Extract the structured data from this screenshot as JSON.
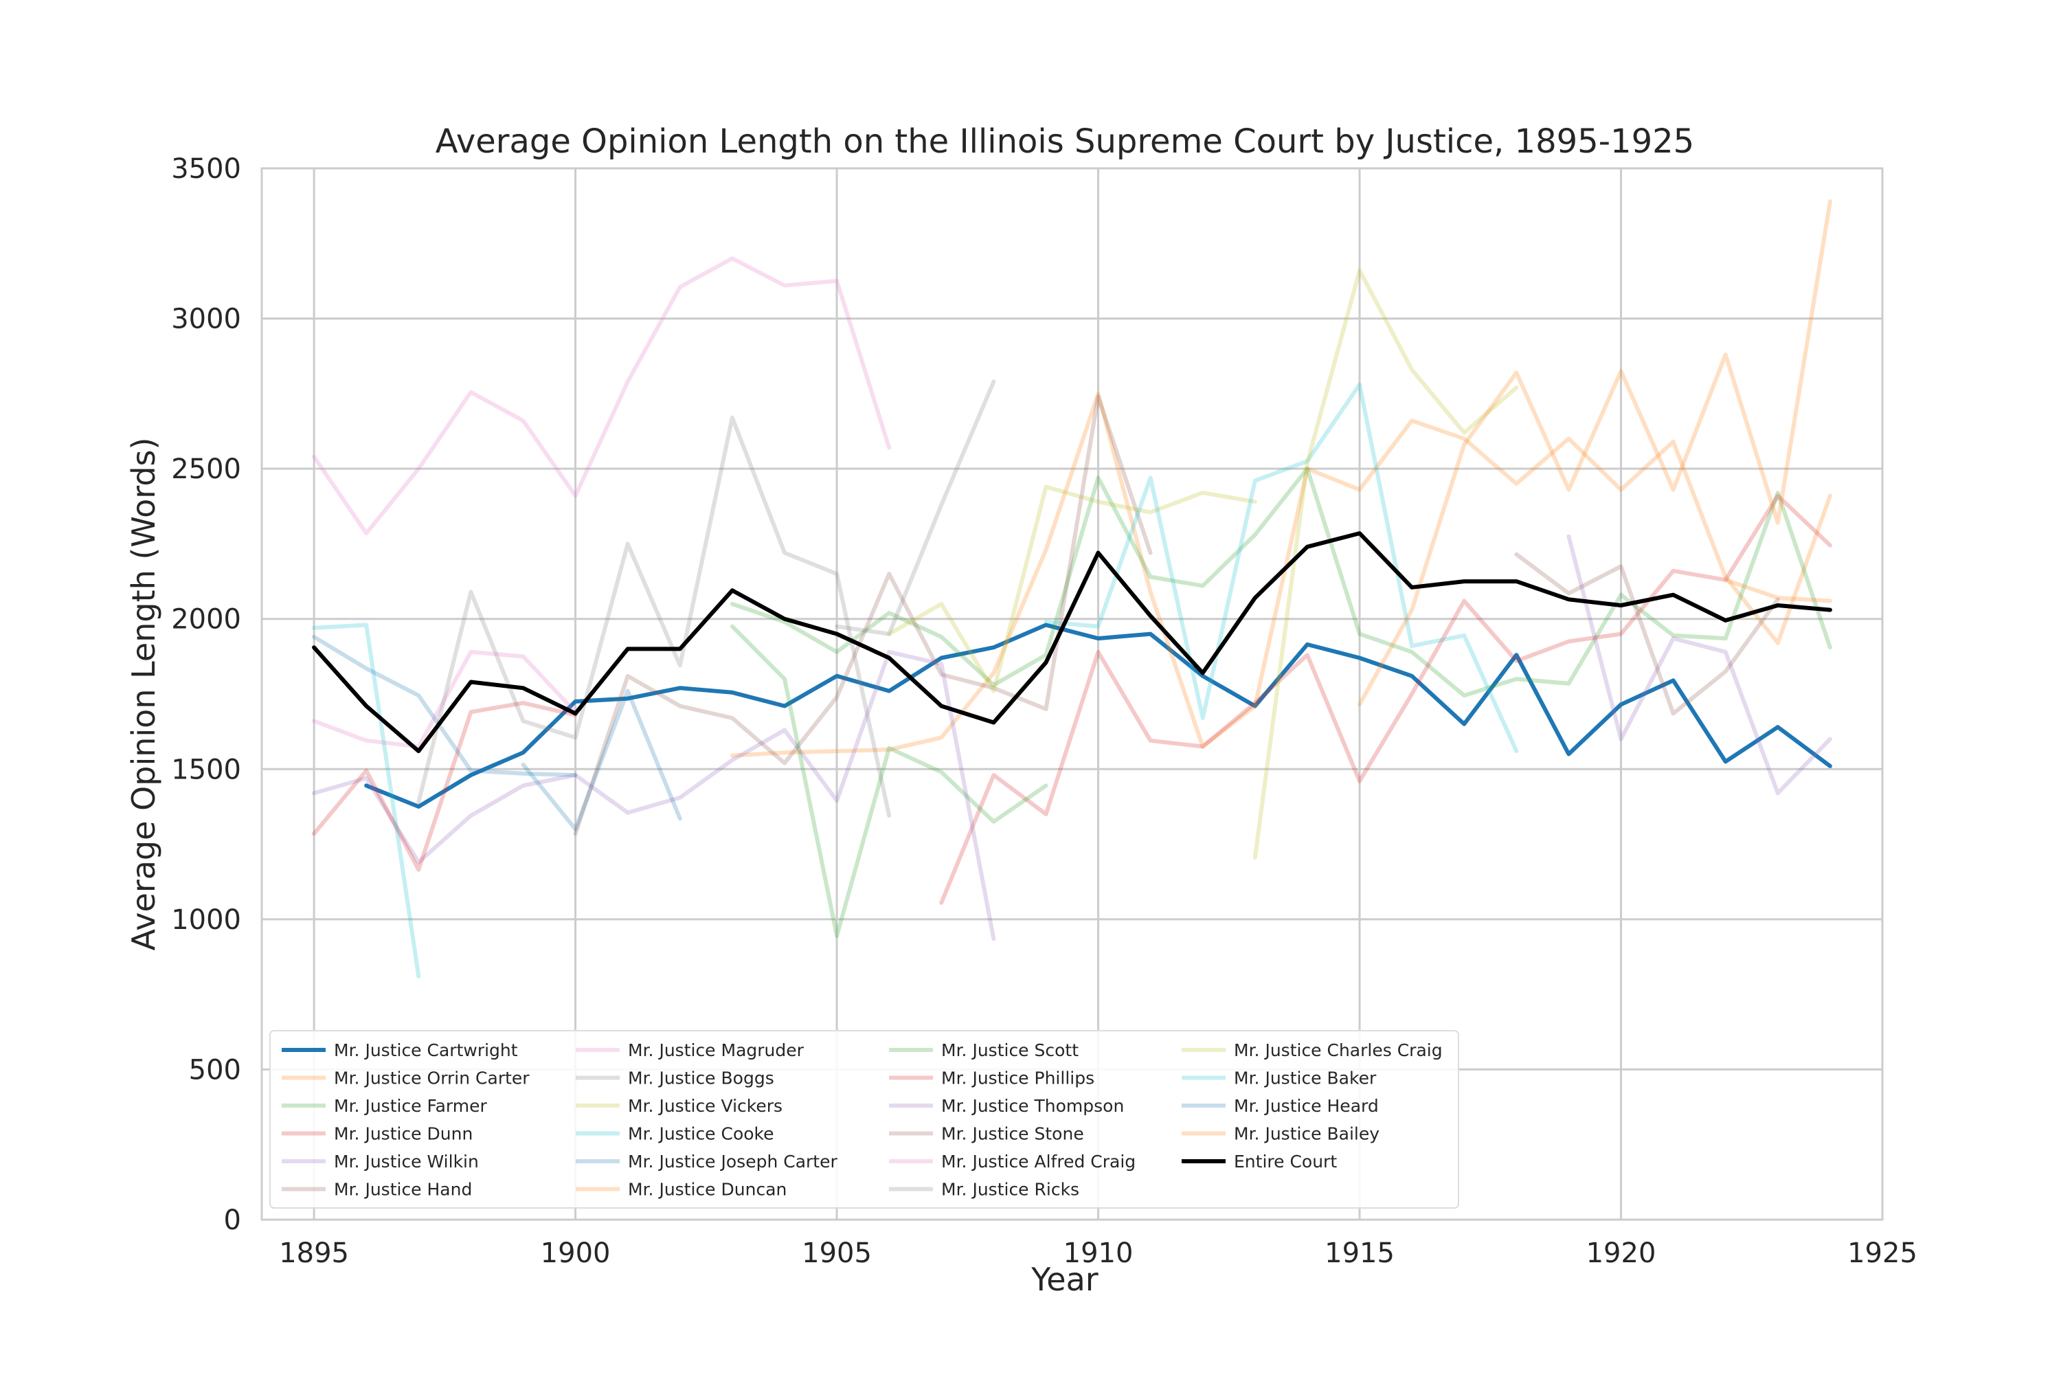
{
  "chart_data": {
    "type": "line",
    "title": "Average Opinion Length on the Illinois Supreme Court by Justice, 1895-1925",
    "xlabel": "Year",
    "ylabel": "Average Opinion Length (Words)",
    "xlim": [
      1894,
      1925
    ],
    "ylim": [
      0,
      3500
    ],
    "xticks": [
      1895,
      1900,
      1905,
      1910,
      1915,
      1920,
      1925
    ],
    "yticks": [
      0,
      500,
      1000,
      1500,
      2000,
      2500,
      3000,
      3500
    ],
    "grid": true,
    "legend_position": "lower-left",
    "legend_columns": 4,
    "series": [
      {
        "name": "Mr. Justice Cartwright",
        "color": "#1f77b4",
        "alpha": 1.0,
        "width": 3,
        "x": [
          1896,
          1897,
          1898,
          1899,
          1900,
          1901,
          1902,
          1903,
          1904,
          1905,
          1906,
          1907,
          1908,
          1909,
          1910,
          1911,
          1912,
          1913,
          1914,
          1915,
          1916,
          1917,
          1918,
          1919,
          1920,
          1921,
          1922,
          1923,
          1924
        ],
        "y": [
          1445,
          1375,
          1480,
          1555,
          1725,
          1735,
          1770,
          1755,
          1710,
          1810,
          1760,
          1870,
          1905,
          1980,
          1935,
          1950,
          1810,
          1710,
          1915,
          1870,
          1810,
          1650,
          1880,
          1550,
          1715,
          1795,
          1525,
          1640,
          1510
        ]
      },
      {
        "name": "Mr. Justice Orrin Carter",
        "color": "#ff7f0e",
        "alpha": 0.25,
        "width": 3,
        "x": [
          1903,
          1904,
          1905,
          1906,
          1907,
          1908,
          1909,
          1910,
          1911,
          1912,
          1913,
          1914,
          1915,
          1916,
          1917,
          1918,
          1919,
          1920,
          1921,
          1922,
          1923,
          1924
        ],
        "y": [
          1545,
          1555,
          1560,
          1565,
          1605,
          1820,
          2230,
          2750,
          2090,
          1575,
          1710,
          2500,
          2430,
          2660,
          2600,
          2450,
          2600,
          2430,
          2590,
          2140,
          1920,
          2410
        ]
      },
      {
        "name": "Mr. Justice Farmer",
        "color": "#2ca02c",
        "alpha": 0.25,
        "width": 3,
        "x": [
          1903,
          1904,
          1905,
          1906,
          1907,
          1908,
          1909,
          1910,
          1911,
          1912,
          1913,
          1914,
          1915,
          1916,
          1917,
          1918,
          1919,
          1920,
          1921,
          1922,
          1923,
          1924
        ],
        "y": [
          2050,
          1990,
          1890,
          2020,
          1940,
          1780,
          1880,
          2470,
          2140,
          2110,
          2280,
          2500,
          1950,
          1890,
          1745,
          1800,
          1785,
          2080,
          1945,
          1935,
          2420,
          1905
        ]
      },
      {
        "name": "Mr. Justice Dunn",
        "color": "#d62728",
        "alpha": 0.25,
        "width": 3,
        "x": [
          1907,
          1908,
          1909,
          1910,
          1911,
          1912,
          1913,
          1914,
          1915,
          1916,
          1917,
          1918,
          1919,
          1920,
          1921,
          1922,
          1923,
          1924
        ],
        "y": [
          1055,
          1480,
          1350,
          1890,
          1595,
          1575,
          1720,
          1880,
          1460,
          1750,
          2060,
          1860,
          1925,
          1950,
          2160,
          2130,
          2410,
          2245
        ]
      },
      {
        "name": "Mr. Justice Wilkin",
        "color": "#9467bd",
        "alpha": 0.25,
        "width": 3,
        "x": [
          1895,
          1896,
          1897,
          1898,
          1899,
          1900,
          1901,
          1902,
          1903,
          1904,
          1905,
          1906,
          1907,
          1908
        ],
        "y": [
          1420,
          1470,
          1190,
          1345,
          1445,
          1480,
          1355,
          1405,
          1530,
          1630,
          1395,
          1890,
          1850,
          935
        ]
      },
      {
        "name": "Mr. Justice Hand",
        "color": "#8c564b",
        "alpha": 0.25,
        "width": 3,
        "x": [
          1900,
          1901,
          1902,
          1903,
          1904,
          1905,
          1906,
          1907,
          1908,
          1909,
          1910,
          1911
        ],
        "y": [
          1285,
          1810,
          1710,
          1670,
          1520,
          1740,
          2150,
          1815,
          1770,
          1700,
          2740,
          2220
        ]
      },
      {
        "name": "Mr. Justice Magruder",
        "color": "#e377c2",
        "alpha": 0.25,
        "width": 3,
        "x": [
          1895,
          1896,
          1897,
          1898,
          1899,
          1900,
          1901,
          1902,
          1903,
          1904,
          1905,
          1906
        ],
        "y": [
          2540,
          2285,
          2500,
          2755,
          2660,
          2410,
          2790,
          3105,
          3200,
          3110,
          3125,
          2570
        ]
      },
      {
        "name": "Mr. Justice Boggs",
        "color": "#7f7f7f",
        "alpha": 0.25,
        "width": 3,
        "x": [
          1897,
          1898,
          1899,
          1900,
          1901,
          1902,
          1903,
          1904,
          1905,
          1906
        ],
        "y": [
          1390,
          2090,
          1660,
          1605,
          2250,
          1845,
          2670,
          2220,
          2150,
          1345
        ]
      },
      {
        "name": "Mr. Justice Vickers",
        "color": "#bcbd22",
        "alpha": 0.25,
        "width": 3,
        "x": [
          1906,
          1907,
          1908,
          1909,
          1910,
          1911,
          1912,
          1913
        ],
        "y": [
          1950,
          2050,
          1760,
          2440,
          2390,
          2355,
          2420,
          2390
        ]
      },
      {
        "name": "Mr. Justice Cooke",
        "color": "#17becf",
        "alpha": 0.25,
        "width": 3,
        "x": [
          1909,
          1910,
          1911,
          1912,
          1913,
          1914,
          1915,
          1916,
          1917,
          1918
        ],
        "y": [
          1990,
          1975,
          2470,
          1670,
          2460,
          2525,
          2780,
          1910,
          1945,
          1560
        ]
      },
      {
        "name": "Mr. Justice Joseph Carter",
        "color": "#1f77b4",
        "alpha": 0.25,
        "width": 3,
        "x": [
          1899,
          1900,
          1901,
          1902
        ],
        "y": [
          1515,
          1300,
          1760,
          1335
        ]
      },
      {
        "name": "Mr. Justice Duncan",
        "color": "#ff7f0e",
        "alpha": 0.25,
        "width": 3,
        "x": [
          1915,
          1916,
          1917,
          1918,
          1919,
          1920,
          1921,
          1922,
          1923,
          1924
        ],
        "y": [
          1715,
          2030,
          2580,
          2820,
          2430,
          2825,
          2430,
          2880,
          2320,
          3390
        ]
      },
      {
        "name": "Mr. Justice Scott",
        "color": "#2ca02c",
        "alpha": 0.25,
        "width": 3,
        "x": [
          1903,
          1904,
          1905,
          1906,
          1907,
          1908,
          1909
        ],
        "y": [
          1975,
          1800,
          945,
          1570,
          1490,
          1325,
          1445
        ]
      },
      {
        "name": "Mr. Justice Phillips",
        "color": "#d62728",
        "alpha": 0.25,
        "width": 3,
        "x": [
          1895,
          1896,
          1897,
          1898,
          1899,
          1900
        ],
        "y": [
          1285,
          1495,
          1165,
          1690,
          1720,
          1680
        ]
      },
      {
        "name": "Mr. Justice Thompson",
        "color": "#9467bd",
        "alpha": 0.25,
        "width": 3,
        "x": [
          1919,
          1920,
          1921,
          1922,
          1923,
          1924
        ],
        "y": [
          2275,
          1600,
          1935,
          1890,
          1420,
          1600
        ]
      },
      {
        "name": "Mr. Justice Stone",
        "color": "#8c564b",
        "alpha": 0.25,
        "width": 3,
        "x": [
          1918,
          1919,
          1920,
          1921,
          1922,
          1923
        ],
        "y": [
          2215,
          2085,
          2175,
          1685,
          1825,
          2065
        ]
      },
      {
        "name": "Mr. Justice Alfred Craig",
        "color": "#e377c2",
        "alpha": 0.25,
        "width": 3,
        "x": [
          1895,
          1896,
          1897,
          1898,
          1899,
          1900
        ],
        "y": [
          1660,
          1595,
          1575,
          1890,
          1875,
          1690
        ]
      },
      {
        "name": "Mr. Justice Ricks",
        "color": "#7f7f7f",
        "alpha": 0.25,
        "width": 3,
        "x": [
          1905,
          1906,
          1907,
          1908
        ],
        "y": [
          1975,
          1950,
          2380,
          2790
        ]
      },
      {
        "name": "Mr. Justice Charles Craig",
        "color": "#bcbd22",
        "alpha": 0.25,
        "width": 3,
        "x": [
          1913,
          1914,
          1915,
          1916,
          1917,
          1918
        ],
        "y": [
          1205,
          2520,
          3160,
          2830,
          2620,
          2770
        ]
      },
      {
        "name": "Mr. Justice Baker",
        "color": "#17becf",
        "alpha": 0.25,
        "width": 3,
        "x": [
          1895,
          1896,
          1897
        ],
        "y": [
          1970,
          1980,
          810
        ]
      },
      {
        "name": "Mr. Justice Heard",
        "color": "#1f77b4",
        "alpha": 0.25,
        "width": 3,
        "x": [
          1895,
          1896,
          1897,
          1898,
          1899,
          1900
        ],
        "y": [
          1940,
          1835,
          1745,
          1495,
          1485,
          1480
        ]
      },
      {
        "name": "Mr. Justice Bailey",
        "color": "#ff7f0e",
        "alpha": 0.25,
        "width": 3,
        "x": [
          1922,
          1923,
          1924
        ],
        "y": [
          2130,
          2070,
          2060
        ]
      },
      {
        "name": "Entire Court",
        "color": "#000000",
        "alpha": 1.0,
        "width": 3,
        "x": [
          1895,
          1896,
          1897,
          1898,
          1899,
          1900,
          1901,
          1902,
          1903,
          1904,
          1905,
          1906,
          1907,
          1908,
          1909,
          1910,
          1911,
          1912,
          1913,
          1914,
          1915,
          1916,
          1917,
          1918,
          1919,
          1920,
          1921,
          1922,
          1923,
          1924
        ],
        "y": [
          1905,
          1710,
          1560,
          1790,
          1770,
          1685,
          1900,
          1900,
          2095,
          2000,
          1950,
          1870,
          1710,
          1655,
          1855,
          2220,
          2010,
          1820,
          2070,
          2240,
          2285,
          2105,
          2125,
          2125,
          2065,
          2045,
          2080,
          1995,
          2045,
          2030
        ]
      }
    ]
  }
}
